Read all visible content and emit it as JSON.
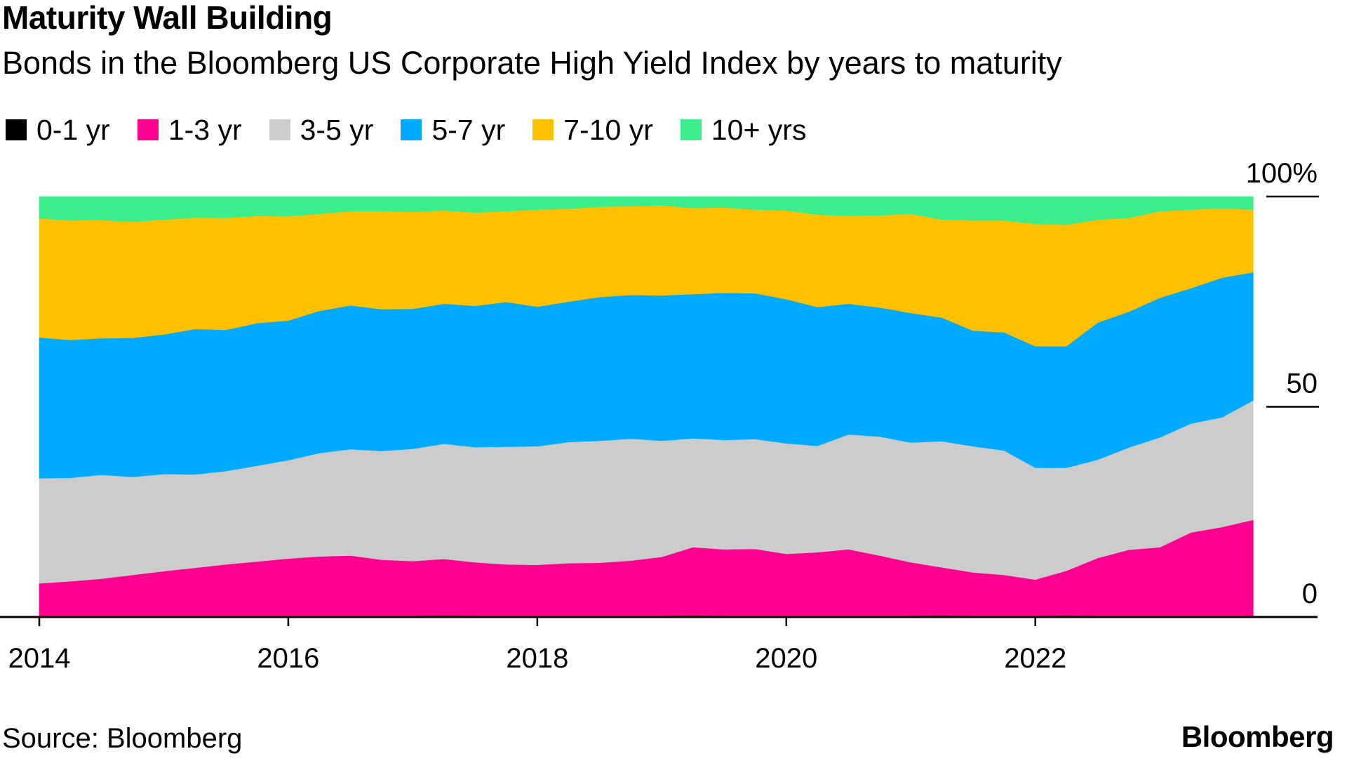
{
  "title": "Maturity Wall Building",
  "subtitle": "Bonds in the Bloomberg US Corporate High Yield Index by years to maturity",
  "source": "Source: Bloomberg",
  "brand": "Bloomberg",
  "chart_data": {
    "type": "area",
    "stacked": true,
    "x": [
      2014.0,
      2014.25,
      2014.5,
      2014.75,
      2015.0,
      2015.25,
      2015.5,
      2015.75,
      2016.0,
      2016.25,
      2016.5,
      2016.75,
      2017.0,
      2017.25,
      2017.5,
      2017.75,
      2018.0,
      2018.25,
      2018.5,
      2018.75,
      2019.0,
      2019.25,
      2019.5,
      2019.75,
      2020.0,
      2020.25,
      2020.5,
      2020.75,
      2021.0,
      2021.25,
      2021.5,
      2021.75,
      2022.0,
      2022.25,
      2022.5,
      2022.75,
      2023.0,
      2023.25,
      2023.5,
      2023.75
    ],
    "series": [
      {
        "name": "0-1 yr",
        "color": "#000000",
        "values": [
          0.3,
          0.3,
          0.3,
          0.3,
          0.3,
          0.3,
          0.3,
          0.3,
          0.3,
          0.3,
          0.3,
          0.3,
          0.3,
          0.4,
          0.3,
          0.3,
          0.3,
          0.3,
          0.3,
          0.3,
          0.3,
          0.4,
          0.3,
          0.3,
          0.3,
          0.3,
          0.3,
          0.3,
          0.3,
          0.4,
          0.3,
          0.3,
          0.3,
          0.4,
          0.3,
          0.3,
          0.3,
          0.3,
          0.3,
          0.3
        ]
      },
      {
        "name": "1-3 yr",
        "color": "#ff0090",
        "values": [
          7.7,
          8.2,
          8.8,
          9.7,
          10.6,
          11.4,
          12.2,
          12.9,
          13.6,
          14.1,
          14.3,
          13.3,
          13.0,
          13.4,
          12.7,
          12.2,
          12.1,
          12.5,
          12.6,
          13.1,
          14.0,
          16.2,
          15.8,
          15.9,
          14.7,
          15.1,
          15.8,
          14.3,
          12.7,
          11.4,
          10.3,
          9.7,
          8.6,
          10.6,
          13.7,
          15.7,
          16.3,
          19.8,
          21.1,
          22.8
        ]
      },
      {
        "name": "3-5 yr",
        "color": "#cccccc",
        "values": [
          25.0,
          24.6,
          24.7,
          23.3,
          23.1,
          22.2,
          22.2,
          22.8,
          23.4,
          24.6,
          25.3,
          25.9,
          26.7,
          27.4,
          27.4,
          28.0,
          28.2,
          28.8,
          29.0,
          29.0,
          27.6,
          25.9,
          26.0,
          26.1,
          26.3,
          25.3,
          27.3,
          28.3,
          28.5,
          30.0,
          30.0,
          29.6,
          26.6,
          24.5,
          23.4,
          24.3,
          26.1,
          25.9,
          26.1,
          28.4
        ]
      },
      {
        "name": "5-7 yr",
        "color": "#00aaff",
        "values": [
          33.5,
          32.8,
          32.5,
          33.1,
          33.2,
          34.6,
          33.6,
          33.9,
          33.2,
          33.8,
          34.2,
          33.7,
          33.3,
          33.3,
          33.6,
          34.4,
          33.2,
          33.4,
          34.2,
          34.2,
          34.6,
          34.3,
          35.0,
          34.7,
          34.3,
          33.0,
          31.1,
          30.7,
          30.8,
          29.4,
          27.5,
          28.1,
          28.9,
          28.9,
          32.6,
          32.3,
          33.2,
          32.2,
          33.2,
          30.5
        ]
      },
      {
        "name": "7-10 yr",
        "color": "#ffc000",
        "values": [
          28.3,
          28.4,
          28.1,
          27.6,
          27.3,
          26.5,
          26.6,
          25.5,
          24.8,
          23.1,
          22.4,
          23.3,
          23.1,
          22.2,
          22.2,
          21.6,
          23.1,
          22.1,
          21.5,
          21.1,
          21.4,
          20.5,
          20.3,
          19.9,
          21.1,
          22.0,
          20.9,
          21.9,
          23.6,
          23.3,
          26.2,
          26.6,
          29.1,
          28.9,
          24.5,
          22.3,
          20.6,
          18.7,
          16.5,
          14.9
        ]
      },
      {
        "name": "10+ yrs",
        "color": "#3ced8c",
        "values": [
          5.2,
          5.7,
          5.6,
          6.0,
          5.5,
          5.0,
          5.1,
          4.6,
          4.7,
          4.1,
          3.5,
          3.5,
          3.6,
          3.3,
          3.8,
          3.5,
          3.1,
          2.9,
          2.4,
          2.3,
          2.1,
          2.7,
          2.6,
          3.1,
          3.3,
          4.3,
          4.6,
          4.5,
          4.1,
          5.5,
          5.7,
          5.7,
          6.5,
          6.7,
          5.5,
          5.1,
          3.5,
          3.1,
          2.8,
          3.1
        ]
      }
    ],
    "x_ticks": [
      2014,
      2016,
      2018,
      2020,
      2022
    ],
    "x_tick_labels": [
      "2014",
      "2016",
      "2018",
      "2020",
      "2022"
    ],
    "xlim": [
      2014,
      2024.25
    ],
    "y_ticks": [
      0,
      50,
      100
    ],
    "y_tick_labels": [
      "0",
      "50",
      "100%"
    ],
    "ylim": [
      0,
      100
    ],
    "y_axis_position": "right",
    "legend_position": "top-left",
    "grid": false
  }
}
